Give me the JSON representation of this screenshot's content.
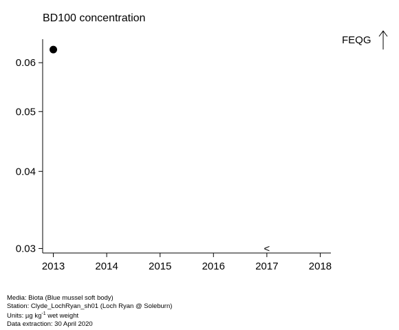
{
  "chart_data": {
    "type": "scatter",
    "title": "BD100 concentration",
    "xlabel": "",
    "ylabel": "",
    "xlim": [
      2012.8,
      2018.2
    ],
    "ylim": [
      0.0295,
      0.0655
    ],
    "y_scale": "log",
    "x_ticks": [
      2013,
      2014,
      2015,
      2016,
      2017,
      2018
    ],
    "y_ticks": [
      0.03,
      0.04,
      0.05,
      0.06
    ],
    "y_tick_labels": [
      "0.03",
      "0.04",
      "0.05",
      "0.06"
    ],
    "series": [
      {
        "points": [
          {
            "x": 2013,
            "y": 0.063,
            "marker": "filled-circle"
          }
        ]
      }
    ],
    "annotations": [
      {
        "text": "<",
        "x": 2017,
        "y": 0.03
      }
    ],
    "criteria": [
      {
        "label": "FEQG",
        "note": "above plotted range",
        "icon": "arrow-up-icon"
      }
    ],
    "grid": false,
    "legend": "none"
  },
  "footer": {
    "media": "Media: Biota (Blue mussel soft body)",
    "station": "Station: Clyde_LochRyan_sh01 (Loch Ryan @ Soleburn)",
    "units_prefix": "Units: µg kg",
    "units_sup": "-1",
    "units_suffix": " wet weight",
    "extraction": "Data extraction: 30 April 2020"
  }
}
